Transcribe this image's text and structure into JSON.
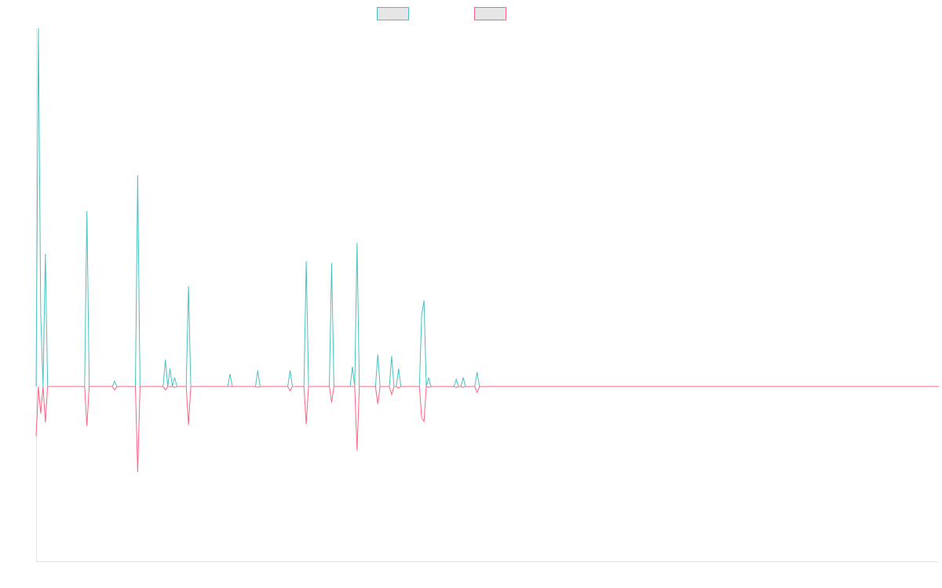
{
  "chart_data": {
    "type": "line",
    "title": "",
    "xlabel": "",
    "ylabel": "",
    "legend_position": "top-center",
    "grid": false,
    "ylim": [
      -100,
      100
    ],
    "series": [
      {
        "color": "#4bc0c0",
        "values": [
          0,
          100,
          20,
          0,
          37,
          0,
          0,
          0,
          0,
          0,
          0,
          0,
          0,
          0,
          0,
          0,
          0,
          0,
          0,
          0,
          0,
          0,
          49,
          0,
          0,
          0,
          0,
          0,
          0,
          0,
          0,
          0,
          0,
          0,
          1.5,
          0,
          0,
          0,
          0,
          0,
          0,
          0,
          0,
          0,
          59,
          0,
          0,
          0,
          0,
          0,
          0,
          0,
          0,
          0,
          0,
          0,
          7.5,
          0,
          5,
          0,
          2.5,
          0,
          0,
          0,
          0,
          0,
          28,
          0,
          0,
          0,
          0,
          0,
          0,
          0,
          0,
          0,
          0,
          0,
          0,
          0,
          0,
          0,
          0,
          0,
          3.5,
          0,
          0,
          0,
          0,
          0,
          0,
          0,
          0,
          0,
          0,
          0,
          4.5,
          0,
          0,
          0,
          0,
          0,
          0,
          0,
          0,
          0,
          0,
          0,
          0,
          0,
          4.5,
          0,
          0,
          0,
          0,
          0,
          0,
          35,
          0,
          0,
          0,
          0,
          0,
          0,
          0,
          0,
          0,
          0,
          34.5,
          0,
          0,
          0,
          0,
          0,
          0,
          0,
          0,
          5.5,
          0,
          40,
          0,
          0,
          0,
          0,
          0,
          0,
          0,
          0,
          9,
          0,
          0,
          0,
          0,
          0,
          8.5,
          0,
          0,
          5,
          0,
          0,
          0,
          0,
          0,
          0,
          0,
          0,
          0,
          20,
          24,
          0,
          2.5,
          0,
          0,
          0,
          0,
          0,
          0,
          0,
          0,
          0,
          0,
          0,
          2,
          0,
          0,
          2.5,
          0,
          0,
          0,
          0,
          0,
          4,
          0,
          0,
          0,
          0,
          0,
          0,
          0,
          0,
          0,
          0,
          0,
          0,
          0,
          0,
          0,
          0,
          0,
          0,
          0,
          0,
          0,
          0,
          0,
          0,
          0,
          0,
          0,
          0,
          0,
          0,
          0,
          0,
          0,
          0,
          0,
          0,
          0,
          0,
          0,
          0,
          0,
          0,
          0,
          0,
          0,
          0,
          0,
          0,
          0,
          0,
          0,
          0,
          0,
          0,
          0,
          0,
          0,
          0,
          0,
          0,
          0,
          0,
          0,
          0,
          0,
          0,
          0,
          0,
          0,
          0,
          0,
          0,
          0,
          0,
          0,
          0,
          0,
          0,
          0,
          0,
          0,
          0,
          0,
          0,
          0,
          0,
          0,
          0,
          0,
          0,
          0,
          0,
          0,
          0,
          0,
          0,
          0,
          0,
          0,
          0,
          0,
          0,
          0,
          0,
          0,
          0,
          0,
          0,
          0,
          0,
          0,
          0,
          0,
          0,
          0,
          0,
          0,
          0,
          0,
          0,
          0,
          0,
          0,
          0,
          0,
          0,
          0,
          0,
          0,
          0,
          0,
          0,
          0,
          0,
          0,
          0,
          0,
          0,
          0,
          0,
          0,
          0,
          0,
          0,
          0,
          0,
          0,
          0,
          0,
          0,
          0,
          0,
          0,
          0,
          0,
          0,
          0,
          0,
          0,
          0,
          0,
          0,
          0,
          0,
          0,
          0,
          0,
          0,
          0,
          0,
          0,
          0,
          0,
          0,
          0,
          0,
          0,
          0,
          0,
          0,
          0,
          0,
          0,
          0,
          0,
          0,
          0,
          0,
          0,
          0,
          0,
          0,
          0,
          0,
          0,
          0,
          0,
          0,
          0,
          0
        ]
      },
      {
        "color": "#ff6384",
        "values": [
          -28.5,
          0,
          -15.5,
          0,
          -20.5,
          0,
          0,
          0,
          0,
          0,
          0,
          0,
          0,
          0,
          0,
          0,
          0,
          0,
          0,
          0,
          0,
          0,
          -22.5,
          0,
          0,
          0,
          0,
          0,
          0,
          0,
          0,
          0,
          0,
          0,
          -2,
          0,
          0,
          0,
          0,
          0,
          0,
          0,
          0,
          0,
          -49,
          0,
          0,
          0,
          0,
          0,
          0,
          0,
          0,
          0,
          0,
          0,
          -2,
          0,
          0,
          0,
          -0.5,
          0,
          0,
          0,
          0,
          0,
          -22,
          0,
          0,
          0,
          0,
          0,
          0,
          0,
          0,
          0,
          0,
          0,
          0,
          0,
          0,
          0,
          0,
          0,
          0,
          0,
          0,
          0,
          0,
          0,
          0,
          0,
          0,
          0,
          0,
          0,
          -0.5,
          0,
          0,
          0,
          0,
          0,
          0,
          0,
          0,
          0,
          0,
          0,
          0,
          0,
          -2.5,
          0,
          0,
          0,
          0,
          0,
          0,
          -21.5,
          0,
          0,
          0,
          0,
          0,
          0,
          0,
          0,
          0,
          0,
          -9,
          0,
          0,
          0,
          0,
          0,
          0,
          0,
          0,
          0,
          0,
          -36.5,
          0,
          0,
          0,
          0,
          0,
          0,
          0,
          0,
          -10,
          0,
          0,
          0,
          0,
          0,
          -4.5,
          0,
          0,
          -1,
          0,
          0,
          0,
          0,
          0,
          0,
          0,
          0,
          0,
          -18,
          -20,
          0,
          -0.5,
          0,
          0,
          0,
          0,
          0,
          0,
          0,
          0,
          0,
          0,
          0,
          -0.5,
          0,
          0,
          -0.5,
          0,
          0,
          0,
          0,
          0,
          -3.5,
          0,
          0,
          0,
          0,
          0,
          0,
          0,
          0,
          0,
          0,
          0,
          0,
          0,
          0,
          0,
          0,
          0,
          0,
          0,
          0,
          0,
          0,
          0,
          0,
          0,
          0,
          0,
          0,
          0,
          0,
          0,
          0,
          0,
          0,
          0,
          0,
          0,
          0,
          0,
          0,
          0,
          0,
          0,
          0,
          0,
          0,
          0,
          0,
          0,
          0,
          0,
          0,
          0,
          0,
          0,
          0,
          0,
          0,
          0,
          0,
          0,
          0,
          0,
          0,
          0,
          0,
          0,
          0,
          0,
          0,
          0,
          0,
          0,
          0,
          0,
          0,
          0,
          0,
          0,
          0,
          0,
          0,
          0,
          0,
          0,
          0,
          0,
          0,
          0,
          0,
          0,
          0,
          0,
          0,
          0,
          0,
          0,
          0,
          0,
          0,
          0,
          0,
          0,
          0,
          0,
          0,
          0,
          0,
          0,
          0,
          0,
          0,
          0,
          0,
          0,
          0,
          0,
          0,
          0,
          0,
          0,
          0,
          0,
          0,
          0,
          0,
          0,
          0,
          0,
          0,
          0,
          0,
          0,
          0,
          0,
          0,
          0,
          0,
          0,
          0,
          0,
          0,
          0,
          0,
          0,
          0,
          0,
          0,
          0,
          0,
          0,
          0,
          0,
          0,
          0,
          0,
          0,
          0,
          0,
          0,
          0,
          0,
          0,
          0,
          0,
          0,
          0,
          0,
          0,
          0,
          0,
          0,
          0,
          0,
          0,
          0,
          0,
          0,
          0,
          0,
          0,
          0,
          0,
          0,
          0,
          0,
          0,
          0,
          0,
          0,
          0,
          0,
          0,
          0,
          0,
          0,
          0,
          0,
          0,
          0
        ]
      }
    ]
  }
}
